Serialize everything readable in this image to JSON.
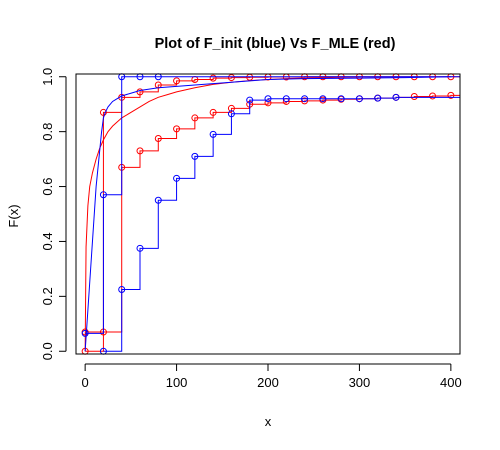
{
  "chart_data": {
    "type": "line",
    "title": "Plot of F_init (blue) Vs F_MLE (red)",
    "xlabel": "x",
    "ylabel": "F(x)",
    "xlim": [
      -10,
      410
    ],
    "ylim": [
      -0.01,
      1.01
    ],
    "x_ticks": [
      0,
      100,
      200,
      300,
      400
    ],
    "y_ticks": [
      0.0,
      0.2,
      0.4,
      0.6,
      0.8,
      1.0
    ],
    "x_tick_labels": [
      "0",
      "100",
      "200",
      "300",
      "400"
    ],
    "y_tick_labels": [
      "0.0",
      "0.2",
      "0.4",
      "0.6",
      "0.8",
      "1.0"
    ],
    "grid": false,
    "colors": {
      "blue": "#0000ff",
      "red": "#ff0000",
      "axis": "#000000"
    },
    "series": [
      {
        "color": "#ff0000",
        "kind": "step",
        "x": [
          0,
          20,
          40,
          60,
          80,
          100,
          120,
          140,
          160,
          180,
          200,
          220,
          240,
          260,
          280,
          300,
          320,
          340,
          360,
          380,
          400
        ],
        "values": [
          0.0,
          0.07,
          0.67,
          0.73,
          0.775,
          0.81,
          0.85,
          0.87,
          0.885,
          0.9,
          0.905,
          0.91,
          0.912,
          0.915,
          0.918,
          0.92,
          0.922,
          0.925,
          0.928,
          0.93,
          0.932
        ],
        "markers": true
      },
      {
        "color": "#ff0000",
        "kind": "step",
        "x": [
          0,
          20,
          40,
          60,
          80,
          100,
          120,
          140,
          160,
          180,
          200,
          220,
          240,
          260,
          280,
          300,
          320,
          340,
          360,
          380,
          400
        ],
        "values": [
          0.07,
          0.87,
          0.925,
          0.945,
          0.97,
          0.985,
          0.99,
          0.995,
          0.997,
          0.998,
          0.999,
          0.999,
          1.0,
          1.0,
          1.0,
          1.0,
          1.0,
          1.0,
          1.0,
          1.0,
          1.0
        ],
        "markers": true
      },
      {
        "color": "#ff0000",
        "kind": "curve",
        "x": [
          0,
          1,
          3,
          5,
          8,
          12,
          16,
          20,
          25,
          30,
          35,
          40,
          50,
          60,
          70,
          80,
          90,
          100,
          120,
          140,
          160,
          180,
          200,
          220,
          240,
          260,
          300
        ],
        "values": [
          0.0,
          0.38,
          0.53,
          0.6,
          0.65,
          0.7,
          0.74,
          0.77,
          0.8,
          0.82,
          0.835,
          0.85,
          0.87,
          0.89,
          0.91,
          0.925,
          0.935,
          0.945,
          0.96,
          0.972,
          0.98,
          0.986,
          0.99,
          0.993,
          0.995,
          0.997,
          0.999
        ],
        "markers": false
      },
      {
        "color": "#0000ff",
        "kind": "step",
        "x": [
          20,
          40,
          60,
          80,
          100,
          120,
          140,
          160,
          180,
          200,
          220,
          240,
          260,
          280,
          300,
          320,
          340
        ],
        "values": [
          0.0,
          0.225,
          0.375,
          0.55,
          0.63,
          0.71,
          0.79,
          0.865,
          0.915,
          0.92,
          0.92,
          0.92,
          0.92,
          0.92,
          0.92,
          0.922,
          0.925
        ],
        "markers": true
      },
      {
        "color": "#0000ff",
        "kind": "step",
        "x": [
          0,
          20,
          40,
          60,
          80,
          100,
          120,
          140,
          160,
          180,
          200,
          220,
          240,
          260,
          280,
          300,
          320,
          340,
          360,
          380,
          400
        ],
        "values": [
          0.065,
          0.57,
          1.0,
          1.0,
          1.0,
          1.0,
          1.0,
          1.0,
          1.0,
          1.0,
          1.0,
          1.0,
          1.0,
          1.0,
          1.0,
          1.0,
          1.0,
          1.0,
          1.0,
          1.0,
          1.0
        ],
        "markers": true,
        "marker_x": [
          0,
          20,
          40,
          60,
          80
        ]
      },
      {
        "color": "#0000ff",
        "kind": "curve",
        "x": [
          0,
          2,
          4,
          6,
          8,
          10,
          12,
          15,
          18,
          20,
          22,
          25,
          30,
          35,
          40,
          50,
          60,
          70,
          80,
          100,
          120,
          140,
          160,
          180,
          200,
          240,
          300,
          350,
          400
        ],
        "values": [
          0.0,
          0.1,
          0.2,
          0.3,
          0.4,
          0.5,
          0.6,
          0.7,
          0.8,
          0.85,
          0.87,
          0.89,
          0.91,
          0.92,
          0.93,
          0.94,
          0.95,
          0.955,
          0.96,
          0.965,
          0.97,
          0.975,
          0.98,
          0.985,
          0.99,
          0.993,
          0.995,
          0.997,
          1.0
        ],
        "markers": false
      }
    ]
  }
}
